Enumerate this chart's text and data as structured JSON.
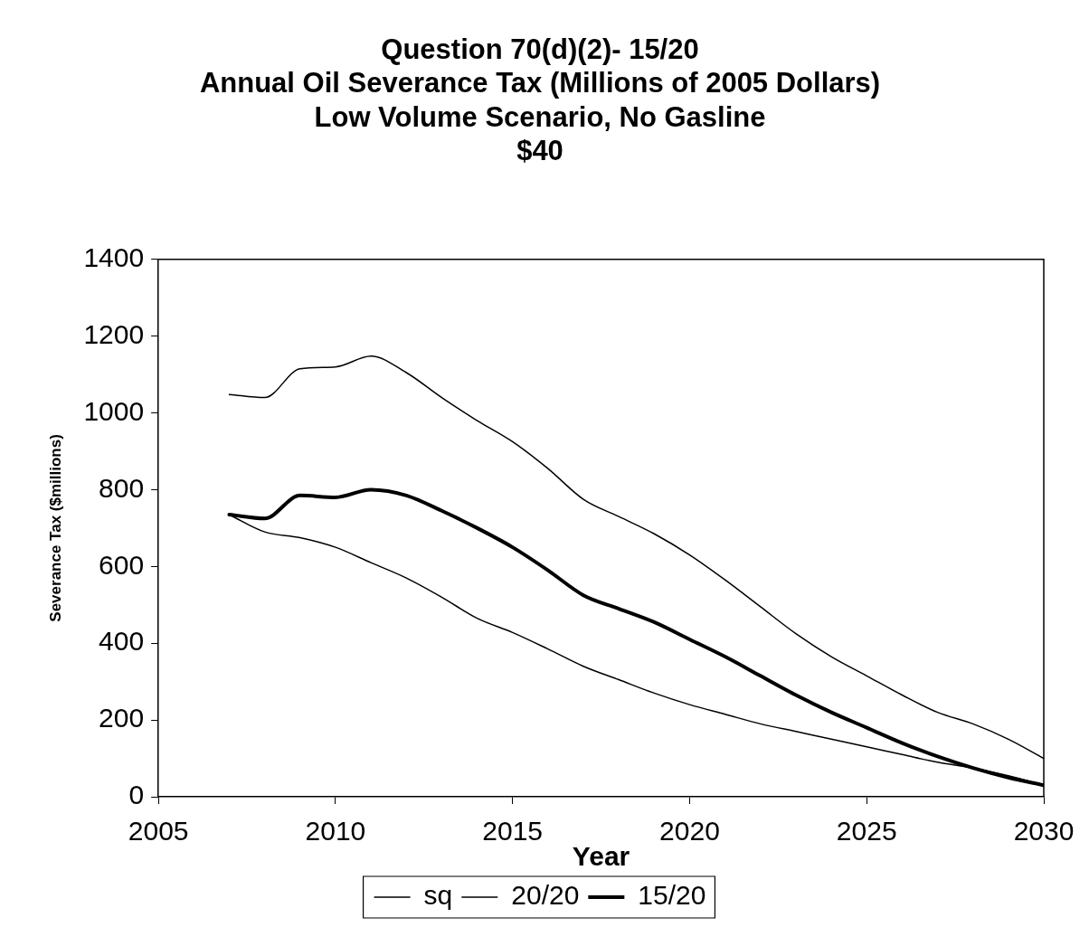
{
  "chart_data": {
    "type": "line",
    "title": [
      "Question 70(d)(2)- 15/20",
      "Annual Oil Severance Tax (Millions of 2005 Dollars)",
      "Low Volume Scenario, No Gasline",
      "$40"
    ],
    "xlabel": "Year",
    "ylabel": "Severance Tax ($millions)",
    "x": [
      2007,
      2008,
      2009,
      2010,
      2011,
      2012,
      2013,
      2014,
      2015,
      2016,
      2017,
      2018,
      2019,
      2020,
      2021,
      2022,
      2023,
      2024,
      2025,
      2026,
      2027,
      2028,
      2029,
      2030
    ],
    "series": [
      {
        "name": "sq",
        "color": "#000000",
        "values": [
          735,
          690,
          675,
          650,
          610,
          570,
          520,
          465,
          428,
          385,
          340,
          305,
          270,
          240,
          215,
          190,
          170,
          150,
          130,
          110,
          90,
          75,
          55,
          30
        ]
      },
      {
        "name": "20/20",
        "color": "#000000",
        "values": [
          1048,
          1040,
          1115,
          1120,
          1148,
          1105,
          1040,
          980,
          925,
          855,
          775,
          730,
          685,
          630,
          565,
          495,
          425,
          365,
          315,
          265,
          220,
          190,
          150,
          100
        ]
      },
      {
        "name": "15/20",
        "color": "#000000",
        "values": [
          735,
          725,
          785,
          780,
          800,
          785,
          745,
          700,
          650,
          590,
          525,
          490,
          455,
          410,
          365,
          315,
          265,
          220,
          180,
          140,
          105,
          75,
          50,
          30
        ]
      }
    ],
    "xlim": [
      2005,
      2030
    ],
    "xticks": [
      2005,
      2010,
      2015,
      2020,
      2025,
      2030
    ],
    "ylim": [
      0,
      1400
    ],
    "yticks": [
      0,
      200,
      400,
      600,
      800,
      1000,
      1200,
      1400
    ],
    "grid": false,
    "legend": "bottom",
    "marker": "none",
    "line_style": "solid"
  }
}
